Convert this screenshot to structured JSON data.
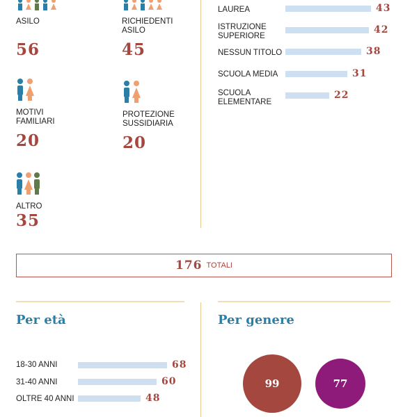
{
  "permits": [
    {
      "label": "ASILO",
      "value": "56"
    },
    {
      "label": "RICHIEDENTI\nASILO",
      "value": "45"
    },
    {
      "label": "MOTIVI\nFAMILIARI",
      "value": "20"
    },
    {
      "label": "PROTEZIONE\nSUSSIDIARIA",
      "value": "20"
    },
    {
      "label": "ALTRO",
      "value": "35"
    }
  ],
  "education": {
    "rows": [
      {
        "label": "LAUREA",
        "value": 43
      },
      {
        "label": "ISTRUZIONE\nSUPERIORE",
        "value": 42
      },
      {
        "label": "NESSUN TITOLO",
        "value": 38
      },
      {
        "label": "SCUOLA MEDIA",
        "value": 31
      },
      {
        "label": "SCUOLA\nELEMENTARE",
        "value": 22
      }
    ]
  },
  "total": {
    "value": "176",
    "label": "TOTALI"
  },
  "age": {
    "title": "Per età",
    "rows": [
      {
        "label": "18-30 ANNI",
        "value": 68
      },
      {
        "label": "31-40 ANNI",
        "value": 60
      },
      {
        "label": "OLTRE 40 ANNI",
        "value": 48
      }
    ]
  },
  "gender": {
    "title": "Per genere",
    "circles": [
      {
        "value": 99,
        "color": "#a3473f"
      },
      {
        "value": 77,
        "color": "#8e1a7a"
      }
    ]
  },
  "colors": {
    "blue": "#2a7fa8",
    "orange": "#f0a070",
    "green": "#5f7b4a",
    "red": "#a3473f"
  },
  "chart_data": [
    {
      "type": "bar",
      "categories": [
        "LAUREA",
        "ISTRUZIONE SUPERIORE",
        "NESSUN TITOLO",
        "SCUOLA MEDIA",
        "SCUOLA ELEMENTARE"
      ],
      "values": [
        43,
        42,
        38,
        31,
        22
      ]
    },
    {
      "type": "bar",
      "title": "Per età",
      "categories": [
        "18-30 ANNI",
        "31-40 ANNI",
        "OLTRE 40 ANNI"
      ],
      "values": [
        68,
        60,
        48
      ]
    },
    {
      "type": "bubble",
      "title": "Per genere",
      "values": [
        99,
        77
      ]
    }
  ]
}
